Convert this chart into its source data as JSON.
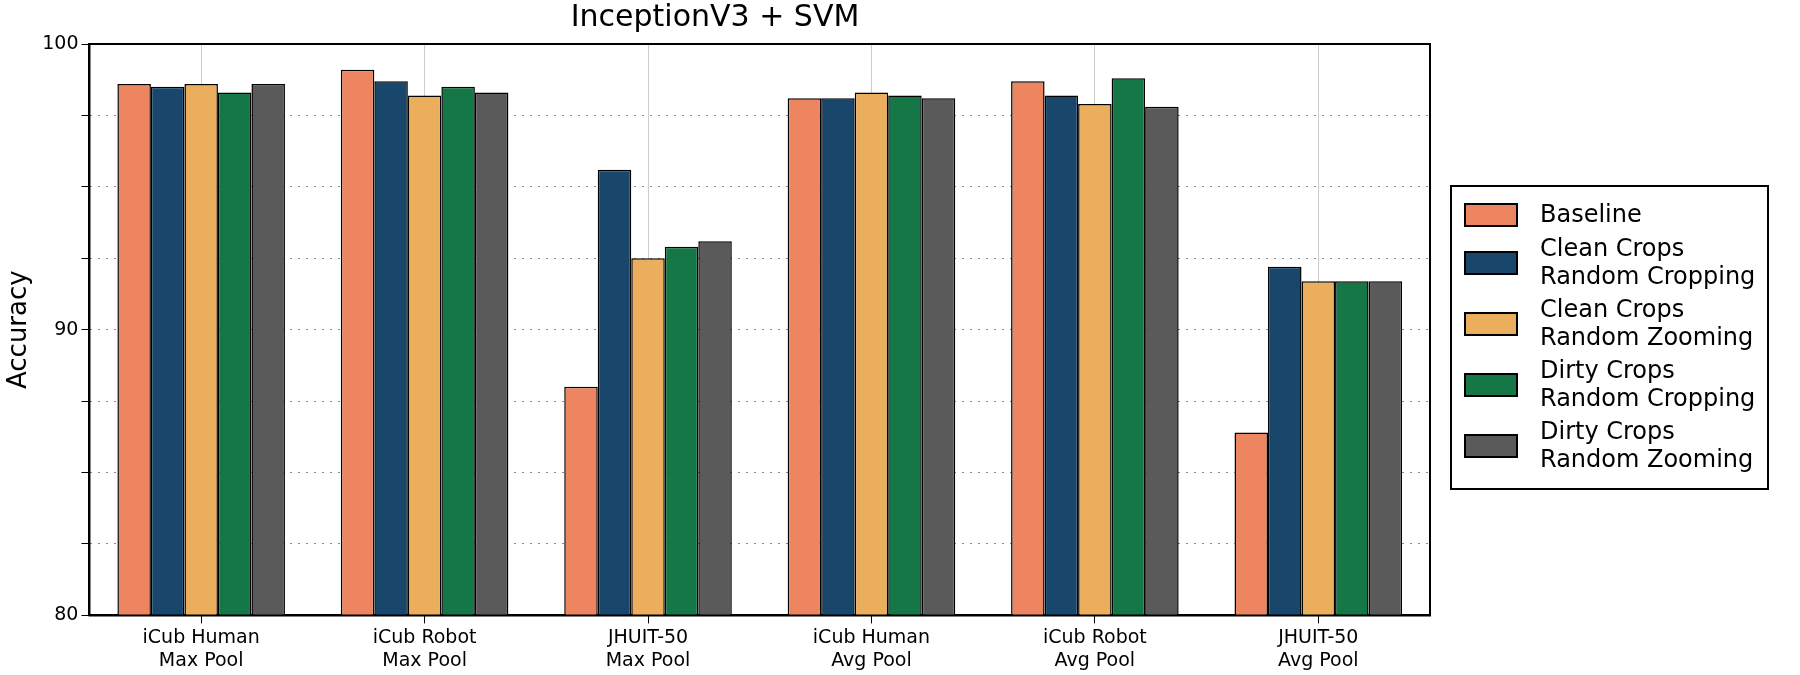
{
  "chart_data": {
    "type": "bar",
    "title": "InceptionV3 + SVM",
    "ylabel": "Accuracy",
    "categories": [
      "iCub Human\nMax Pool",
      "iCub Robot\nMax Pool",
      "JHUIT-50\nMax Pool",
      "iCub Human\nAvg Pool",
      "iCub Robot\nAvg Pool",
      "JHUIT-50\nAvg Pool"
    ],
    "series": [
      {
        "name": "Baseline",
        "color": "#ec8560",
        "values": [
          98.6,
          99.1,
          88.0,
          98.1,
          98.7,
          86.4
        ]
      },
      {
        "name": "Clean Crops\nRandom Cropping",
        "color": "#19476b",
        "values": [
          98.5,
          98.7,
          95.6,
          98.1,
          98.2,
          92.2
        ]
      },
      {
        "name": "Clean Crops\nRandom Zooming",
        "color": "#ebae5c",
        "values": [
          98.6,
          98.2,
          92.5,
          98.3,
          97.9,
          91.7
        ]
      },
      {
        "name": "Dirty Crops\nRandom Cropping",
        "color": "#157646",
        "values": [
          98.3,
          98.5,
          92.9,
          98.2,
          98.8,
          91.7
        ]
      },
      {
        "name": "Dirty Crops\nRandom Zooming",
        "color": "#5a5a5a",
        "values": [
          98.6,
          98.3,
          93.1,
          98.1,
          97.8,
          91.7
        ]
      }
    ],
    "ylim": [
      80,
      100
    ],
    "yticks": [
      80,
      {
        "value": 82.5,
        "label": null
      },
      {
        "value": 85,
        "label": null
      },
      {
        "value": 87.5,
        "label": null
      },
      90,
      {
        "value": 92.5,
        "label": null
      },
      {
        "value": 95,
        "label": null
      },
      {
        "value": 97.5,
        "label": null
      },
      100
    ],
    "grid": true,
    "legend": "right"
  }
}
